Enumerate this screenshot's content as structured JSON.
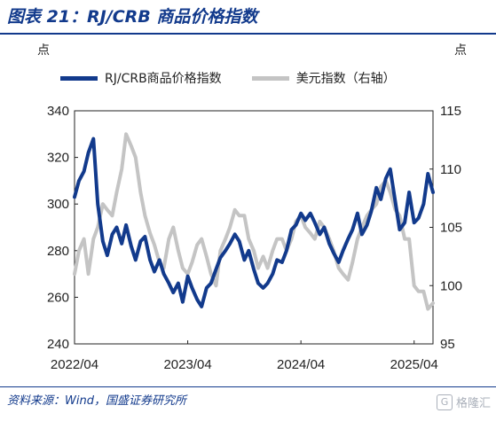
{
  "figure": {
    "title": "图表 21：RJ/CRB 商品价格指数",
    "source": "资料来源：Wind，国盛证券研究所",
    "watermark": "格隆汇",
    "watermark_icon": "g-logo-icon"
  },
  "chart_data": {
    "type": "line",
    "title": "",
    "left_unit": "点",
    "right_unit": "点",
    "x_ticks": [
      "2022/04",
      "2023/04",
      "2024/04",
      "2025/04"
    ],
    "xlim": [
      "2022-04",
      "2025-06"
    ],
    "ylim_left": [
      240,
      340
    ],
    "ylim_right": [
      95,
      115
    ],
    "yticks_left": [
      240,
      260,
      280,
      300,
      320,
      340
    ],
    "yticks_right": [
      95,
      100,
      105,
      110,
      115
    ],
    "grid": false,
    "legend_position": "top",
    "series": [
      {
        "name": "RJ/CRB商品价格指数",
        "axis": "left",
        "color": "#123a8c",
        "points": [
          [
            "2022-04",
            303
          ],
          [
            "2022-04-15",
            310
          ],
          [
            "2022-05",
            314
          ],
          [
            "2022-05-15",
            322
          ],
          [
            "2022-06",
            328
          ],
          [
            "2022-06-15",
            300
          ],
          [
            "2022-07",
            284
          ],
          [
            "2022-07-15",
            278
          ],
          [
            "2022-08",
            287
          ],
          [
            "2022-08-15",
            290
          ],
          [
            "2022-09",
            283
          ],
          [
            "2022-09-15",
            291
          ],
          [
            "2022-10",
            282
          ],
          [
            "2022-10-15",
            276
          ],
          [
            "2022-11",
            284
          ],
          [
            "2022-11-15",
            286
          ],
          [
            "2022-12",
            276
          ],
          [
            "2022-12-15",
            271
          ],
          [
            "2023-01",
            276
          ],
          [
            "2023-01-15",
            270
          ],
          [
            "2023-02",
            266
          ],
          [
            "2023-02-15",
            262
          ],
          [
            "2023-03",
            266
          ],
          [
            "2023-03-15",
            258
          ],
          [
            "2023-04",
            269
          ],
          [
            "2023-04-15",
            264
          ],
          [
            "2023-05",
            259
          ],
          [
            "2023-05-15",
            256
          ],
          [
            "2023-06",
            264
          ],
          [
            "2023-06-15",
            266
          ],
          [
            "2023-07",
            272
          ],
          [
            "2023-07-15",
            277
          ],
          [
            "2023-08",
            280
          ],
          [
            "2023-08-15",
            283
          ],
          [
            "2023-09",
            287
          ],
          [
            "2023-09-15",
            284
          ],
          [
            "2023-10",
            276
          ],
          [
            "2023-10-15",
            280
          ],
          [
            "2023-11",
            272
          ],
          [
            "2023-11-15",
            266
          ],
          [
            "2023-12",
            264
          ],
          [
            "2023-12-15",
            266
          ],
          [
            "2024-01",
            270
          ],
          [
            "2024-01-15",
            276
          ],
          [
            "2024-02",
            275
          ],
          [
            "2024-02-15",
            280
          ],
          [
            "2024-03",
            289
          ],
          [
            "2024-03-15",
            291
          ],
          [
            "2024-04",
            296
          ],
          [
            "2024-04-15",
            293
          ],
          [
            "2024-05",
            296
          ],
          [
            "2024-05-15",
            292
          ],
          [
            "2024-06",
            287
          ],
          [
            "2024-06-15",
            290
          ],
          [
            "2024-07",
            283
          ],
          [
            "2024-07-15",
            279
          ],
          [
            "2024-08",
            275
          ],
          [
            "2024-08-15",
            280
          ],
          [
            "2024-09",
            285
          ],
          [
            "2024-09-15",
            289
          ],
          [
            "2024-10",
            296
          ],
          [
            "2024-10-15",
            287
          ],
          [
            "2024-11",
            291
          ],
          [
            "2024-11-15",
            297
          ],
          [
            "2024-12",
            307
          ],
          [
            "2024-12-15",
            302
          ],
          [
            "2025-01",
            311
          ],
          [
            "2025-01-15",
            315
          ],
          [
            "2025-02",
            301
          ],
          [
            "2025-02-15",
            289
          ],
          [
            "2025-03",
            292
          ],
          [
            "2025-03-15",
            305
          ],
          [
            "2025-04",
            292
          ],
          [
            "2025-04-15",
            294
          ],
          [
            "2025-05",
            300
          ],
          [
            "2025-05-15",
            313
          ],
          [
            "2025-06",
            305
          ]
        ]
      },
      {
        "name": "美元指数（右轴）",
        "axis": "right",
        "color": "#c4c4c4",
        "points": [
          [
            "2022-04",
            101
          ],
          [
            "2022-04-15",
            103
          ],
          [
            "2022-05",
            104
          ],
          [
            "2022-05-15",
            101
          ],
          [
            "2022-06",
            104
          ],
          [
            "2022-06-15",
            105
          ],
          [
            "2022-07",
            107
          ],
          [
            "2022-07-15",
            106.5
          ],
          [
            "2022-08",
            106
          ],
          [
            "2022-08-15",
            108
          ],
          [
            "2022-09",
            110
          ],
          [
            "2022-09-15",
            113
          ],
          [
            "2022-10",
            112
          ],
          [
            "2022-10-15",
            111
          ],
          [
            "2022-11",
            108
          ],
          [
            "2022-11-15",
            106
          ],
          [
            "2022-12",
            104.5
          ],
          [
            "2022-12-15",
            103.5
          ],
          [
            "2023-01",
            102
          ],
          [
            "2023-01-15",
            101.5
          ],
          [
            "2023-02",
            104
          ],
          [
            "2023-02-15",
            105
          ],
          [
            "2023-03",
            103
          ],
          [
            "2023-03-15",
            101.5
          ],
          [
            "2023-04",
            101
          ],
          [
            "2023-04-15",
            102
          ],
          [
            "2023-05",
            103.5
          ],
          [
            "2023-05-15",
            104
          ],
          [
            "2023-06",
            102.5
          ],
          [
            "2023-06-15",
            101
          ],
          [
            "2023-07",
            100
          ],
          [
            "2023-07-15",
            103
          ],
          [
            "2023-08",
            104
          ],
          [
            "2023-08-15",
            105
          ],
          [
            "2023-09",
            106.5
          ],
          [
            "2023-09-15",
            106
          ],
          [
            "2023-10",
            106
          ],
          [
            "2023-10-15",
            104
          ],
          [
            "2023-11",
            103
          ],
          [
            "2023-11-15",
            101.5
          ],
          [
            "2023-12",
            102.5
          ],
          [
            "2023-12-15",
            101.5
          ],
          [
            "2024-01",
            103
          ],
          [
            "2024-01-15",
            104
          ],
          [
            "2024-02",
            104
          ],
          [
            "2024-02-15",
            103
          ],
          [
            "2024-03",
            104
          ],
          [
            "2024-03-15",
            105.5
          ],
          [
            "2024-04",
            106
          ],
          [
            "2024-04-15",
            105
          ],
          [
            "2024-05",
            104.5
          ],
          [
            "2024-05-15",
            104
          ],
          [
            "2024-06",
            105.5
          ],
          [
            "2024-06-15",
            105
          ],
          [
            "2024-07",
            104
          ],
          [
            "2024-07-15",
            103
          ],
          [
            "2024-08",
            101.5
          ],
          [
            "2024-08-15",
            101
          ],
          [
            "2024-09",
            100.5
          ],
          [
            "2024-09-15",
            102
          ],
          [
            "2024-10",
            104
          ],
          [
            "2024-10-15",
            105
          ],
          [
            "2024-11",
            106
          ],
          [
            "2024-11-15",
            106.5
          ],
          [
            "2024-12",
            107
          ],
          [
            "2024-12-15",
            108.5
          ],
          [
            "2025-01",
            109
          ],
          [
            "2025-01-15",
            108
          ],
          [
            "2025-02",
            106.5
          ],
          [
            "2025-02-15",
            106
          ],
          [
            "2025-03",
            104
          ],
          [
            "2025-03-15",
            104
          ],
          [
            "2025-04",
            100
          ],
          [
            "2025-04-15",
            99.5
          ],
          [
            "2025-05",
            99.5
          ],
          [
            "2025-05-15",
            98
          ],
          [
            "2025-06",
            98.5
          ]
        ]
      }
    ]
  }
}
